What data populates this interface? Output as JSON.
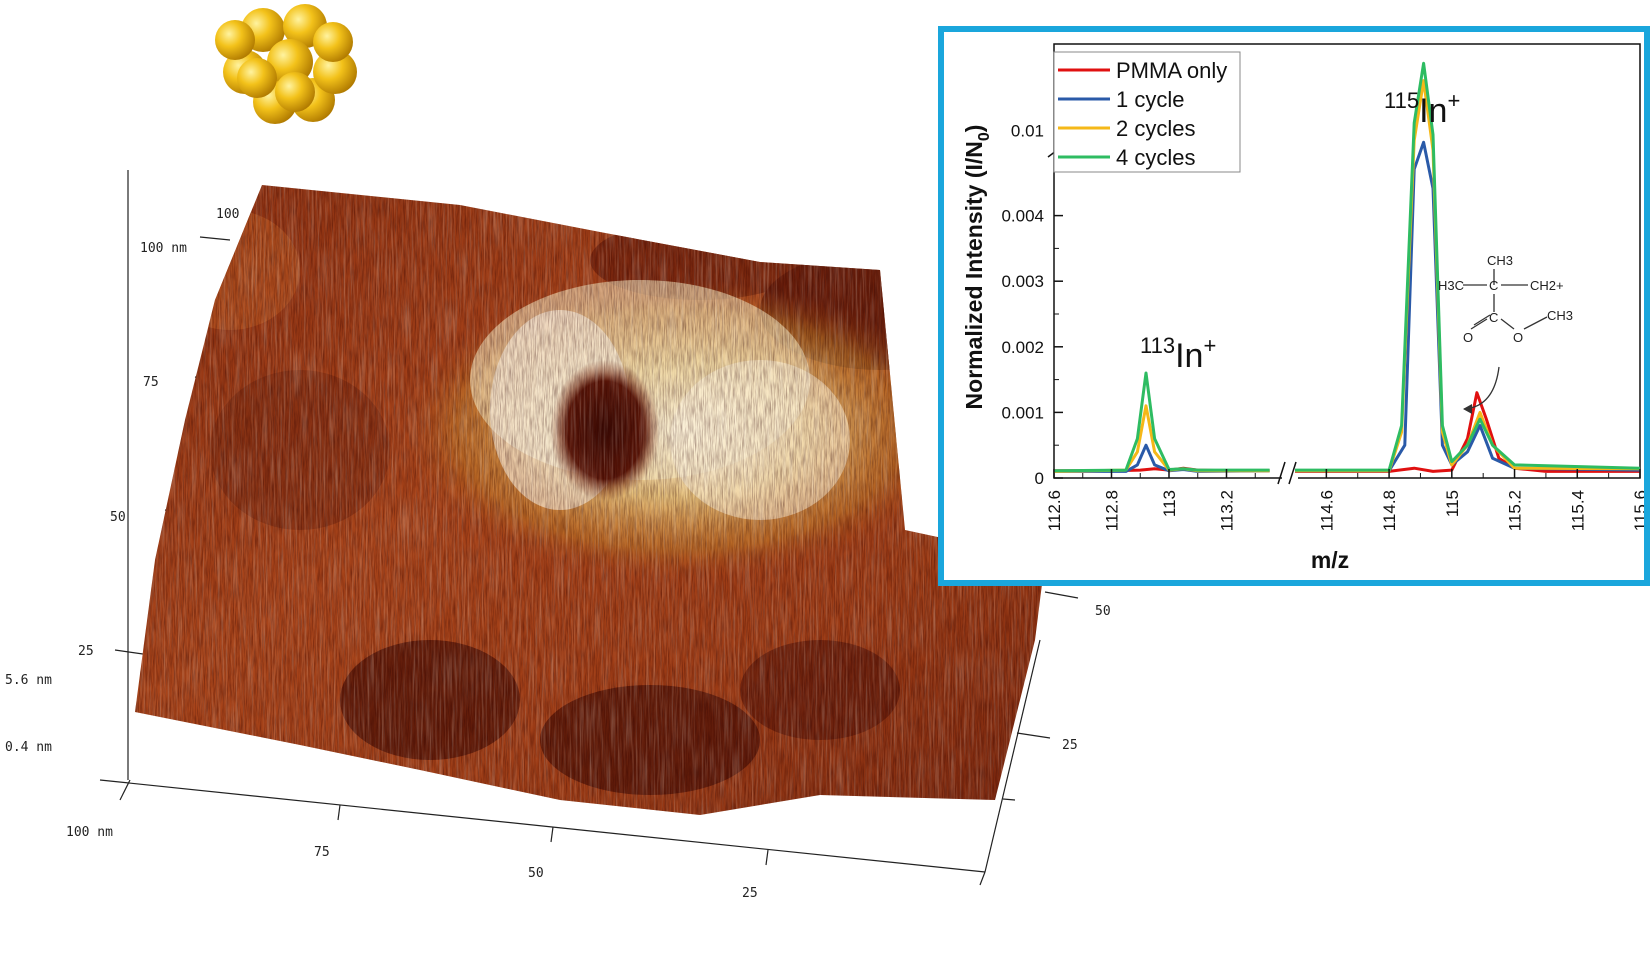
{
  "afm": {
    "z_labels": [
      "5.6 nm",
      "0.4 nm"
    ],
    "left_axis_labels": [
      "100 nm",
      "75",
      "50",
      "25"
    ],
    "left_top_label": "100",
    "bottom_axis_labels": [
      "100 nm",
      "75",
      "50",
      "25"
    ],
    "right_axis_labels": [
      "50",
      "25"
    ],
    "colors": {
      "low": "#5a1508",
      "mid": "#a64618",
      "high": "#e2ae48",
      "peak": "#fbf5e6"
    }
  },
  "cluster_icon": "gold-nanocluster-icon",
  "chart_data": {
    "type": "line",
    "xlabel": "m/z",
    "ylabel": "Normalized Intensity (I/N0)",
    "ylabel_main": "Normalized Intensity (I/N",
    "ylabel_sub": "0",
    "ylabel_close": ")",
    "x_break": [
      113.4,
      114.5
    ],
    "x_segments": [
      [
        112.6,
        113.4
      ],
      [
        114.5,
        115.6
      ]
    ],
    "x_ticks": [
      "112.6",
      "112.8",
      "113",
      "113.2",
      "114.6",
      "114.8",
      "115",
      "115.2",
      "115.4",
      "115.6"
    ],
    "y_break": [
      0.005,
      0.009
    ],
    "y_ticks": [
      "0",
      "0.001",
      "0.002",
      "0.003",
      "0.004",
      "0.01"
    ],
    "annotations": [
      {
        "mass": "113",
        "element": "In",
        "charge": "+"
      },
      {
        "mass": "115",
        "element": "In",
        "charge": "+"
      }
    ],
    "legend": {
      "placement": "top-left"
    },
    "series": [
      {
        "name": "PMMA only",
        "color": "#e01010",
        "points": [
          [
            112.6,
            0.00011
          ],
          [
            112.8,
            0.00011
          ],
          [
            112.9,
            0.00012
          ],
          [
            112.95,
            0.00014
          ],
          [
            113.0,
            0.00012
          ],
          [
            113.05,
            0.00015
          ],
          [
            113.1,
            0.00012
          ],
          [
            113.2,
            0.00011
          ],
          [
            113.35,
            0.00011
          ],
          [
            114.5,
            0.0001
          ],
          [
            114.8,
            0.0001
          ],
          [
            114.88,
            0.00015
          ],
          [
            114.94,
            0.0001
          ],
          [
            115.0,
            0.00012
          ],
          [
            115.05,
            0.0006
          ],
          [
            115.08,
            0.0013
          ],
          [
            115.11,
            0.0009
          ],
          [
            115.15,
            0.0003
          ],
          [
            115.2,
            0.00015
          ],
          [
            115.3,
            0.0001
          ],
          [
            115.6,
            0.0001
          ]
        ]
      },
      {
        "name": "1 cycle",
        "color": "#2a5aa8",
        "points": [
          [
            112.6,
            0.0001
          ],
          [
            112.85,
            0.0001
          ],
          [
            112.89,
            0.0002
          ],
          [
            112.92,
            0.0005
          ],
          [
            112.95,
            0.0002
          ],
          [
            113.0,
            0.00011
          ],
          [
            113.05,
            0.00013
          ],
          [
            113.1,
            0.0001
          ],
          [
            113.35,
            0.00011
          ],
          [
            114.5,
            0.00011
          ],
          [
            114.8,
            0.00011
          ],
          [
            114.85,
            0.0005
          ],
          [
            114.88,
            0.008
          ],
          [
            114.91,
            0.0094
          ],
          [
            114.94,
            0.007
          ],
          [
            114.97,
            0.0005
          ],
          [
            115.0,
            0.0002
          ],
          [
            115.05,
            0.0004
          ],
          [
            115.09,
            0.0008
          ],
          [
            115.13,
            0.0003
          ],
          [
            115.2,
            0.00015
          ],
          [
            115.6,
            0.00012
          ]
        ]
      },
      {
        "name": "2 cycles",
        "color": "#f5b818",
        "points": [
          [
            112.6,
            0.0001
          ],
          [
            112.85,
            0.00012
          ],
          [
            112.89,
            0.0004
          ],
          [
            112.92,
            0.0011
          ],
          [
            112.95,
            0.0004
          ],
          [
            113.0,
            0.00012
          ],
          [
            113.05,
            0.00014
          ],
          [
            113.1,
            0.00011
          ],
          [
            113.35,
            0.00011
          ],
          [
            114.5,
            0.00011
          ],
          [
            114.8,
            0.00011
          ],
          [
            114.84,
            0.0007
          ],
          [
            114.88,
            0.0095
          ],
          [
            114.91,
            0.0126
          ],
          [
            114.94,
            0.009
          ],
          [
            114.97,
            0.0007
          ],
          [
            115.0,
            0.0002
          ],
          [
            115.05,
            0.0005
          ],
          [
            115.09,
            0.001
          ],
          [
            115.13,
            0.0005
          ],
          [
            115.2,
            0.00015
          ],
          [
            115.6,
            0.00014
          ]
        ]
      },
      {
        "name": "4 cycles",
        "color": "#2ebc62",
        "points": [
          [
            112.6,
            0.00011
          ],
          [
            112.85,
            0.00012
          ],
          [
            112.89,
            0.0006
          ],
          [
            112.92,
            0.0016
          ],
          [
            112.95,
            0.0006
          ],
          [
            113.0,
            0.00013
          ],
          [
            113.05,
            0.00014
          ],
          [
            113.1,
            0.00012
          ],
          [
            113.35,
            0.00012
          ],
          [
            114.5,
            0.00012
          ],
          [
            114.8,
            0.00012
          ],
          [
            114.84,
            0.0008
          ],
          [
            114.88,
            0.0104
          ],
          [
            114.91,
            0.0135
          ],
          [
            114.94,
            0.0098
          ],
          [
            114.97,
            0.0008
          ],
          [
            115.0,
            0.00025
          ],
          [
            115.05,
            0.0005
          ],
          [
            115.09,
            0.0009
          ],
          [
            115.13,
            0.0005
          ],
          [
            115.2,
            0.0002
          ],
          [
            115.6,
            0.00015
          ]
        ]
      }
    ]
  },
  "molecule": {
    "labels": [
      "CH3",
      "H3C",
      "C",
      "CH2+",
      "C",
      "O",
      "O",
      "CH3"
    ]
  }
}
